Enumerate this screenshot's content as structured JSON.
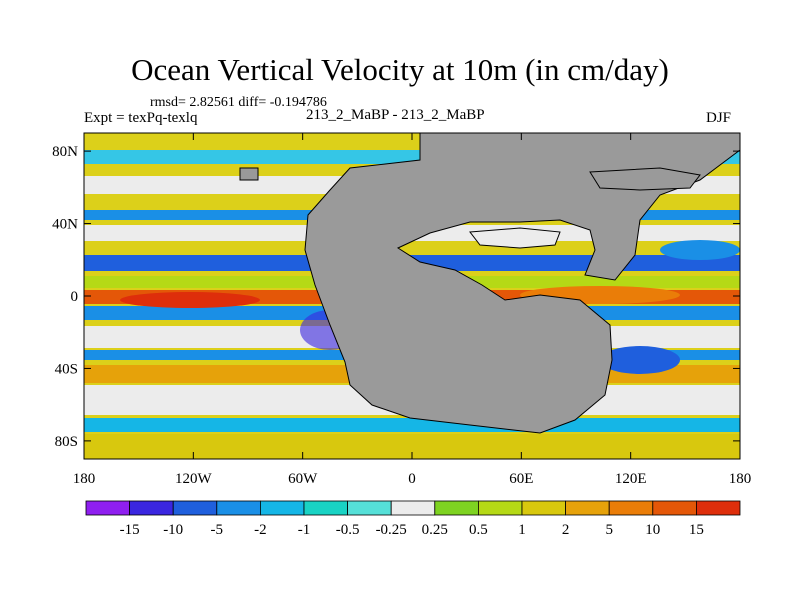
{
  "chart_data": {
    "type": "heatmap",
    "title": "Ocean Vertical Velocity at 10m (in cm/day)",
    "stats_line": "rmsd= 2.82561 diff= -0.194786",
    "experiment_label": "Expt = texPq-texlq",
    "experiment_names": "213_2_MaBP - 213_2_MaBP",
    "season": "DJF",
    "x_ticks": [
      "180",
      "120W",
      "60W",
      "0",
      "60E",
      "120E",
      "180"
    ],
    "x_tick_values": [
      -180,
      -120,
      -60,
      0,
      60,
      120,
      180
    ],
    "y_ticks": [
      "80N",
      "40N",
      "0",
      "40S",
      "80S"
    ],
    "y_tick_values": [
      80,
      40,
      0,
      -40,
      -80
    ],
    "xlim": [
      -180,
      180
    ],
    "ylim": [
      -90,
      90
    ],
    "colorbar_labels": [
      "-15",
      "-10",
      "-5",
      "-2",
      "-1",
      "-0.5",
      "-0.25",
      "0.25",
      "0.5",
      "1",
      "2",
      "5",
      "10",
      "15"
    ],
    "colorbar_colors": [
      "#8f1ff0",
      "#3a26e0",
      "#1f5fdd",
      "#1a8fe6",
      "#15b6e6",
      "#19d3c4",
      "#55e0d8",
      "#ececec",
      "#7ed321",
      "#b5d916",
      "#d8c80e",
      "#e6a20a",
      "#ea7d08",
      "#e45708",
      "#de2e0b"
    ],
    "land_color": "#9a9a9a"
  }
}
